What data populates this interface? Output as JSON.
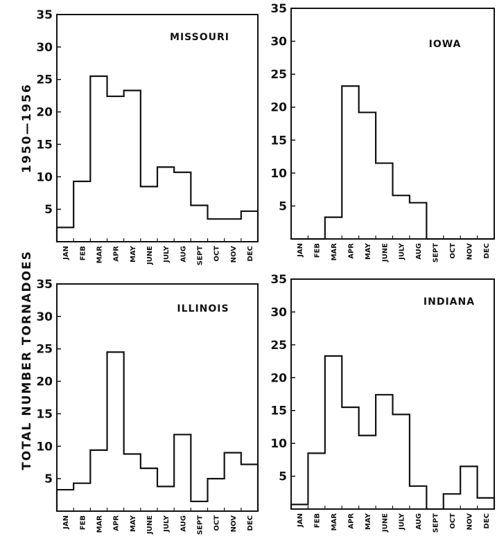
{
  "ylabel_lines": [
    "1950—1956",
    "TOTAL  NUMBER  TORNADOES"
  ],
  "chart_data": [
    {
      "type": "bar",
      "title": "MISSOURI",
      "categories": [
        "JAN",
        "FEB",
        "MAR",
        "APR",
        "MAY",
        "JUNE",
        "JULY",
        "AUG",
        "SEPT",
        "OCT",
        "NOV",
        "DEC"
      ],
      "values": [
        2.2,
        9.3,
        25.5,
        22.4,
        23.3,
        8.5,
        11.5,
        10.7,
        5.6,
        3.5,
        3.5,
        4.7
      ],
      "yticks": [
        5,
        10,
        15,
        20,
        25,
        30,
        35
      ],
      "ylim": [
        0,
        35
      ],
      "xlabel": "",
      "ylabel": "1950—1956 TOTAL NUMBER TORNADOES"
    },
    {
      "type": "bar",
      "title": "IOWA",
      "categories": [
        "JAN",
        "FEB",
        "MAR",
        "APR",
        "MAY",
        "JUNE",
        "JULY",
        "AUG",
        "SEPT",
        "OCT",
        "NOV",
        "DEC"
      ],
      "values": [
        0,
        0,
        3.3,
        23.2,
        19.2,
        11.5,
        6.6,
        5.5,
        0,
        0,
        0,
        0
      ],
      "yticks": [
        5,
        10,
        15,
        20,
        25,
        30,
        35
      ],
      "ylim": [
        0,
        35
      ],
      "xlabel": "",
      "ylabel": ""
    },
    {
      "type": "bar",
      "title": "ILLINOIS",
      "categories": [
        "JAN",
        "FEB",
        "MAR",
        "APR",
        "MAY",
        "JUNE",
        "JULY",
        "AUG",
        "SEPT",
        "OCT",
        "NOV",
        "DEC"
      ],
      "values": [
        3.3,
        4.3,
        9.4,
        24.5,
        8.8,
        6.6,
        3.8,
        11.8,
        1.5,
        5.0,
        9.0,
        7.2
      ],
      "yticks": [
        5,
        10,
        15,
        20,
        25,
        30,
        35
      ],
      "ylim": [
        0,
        35
      ],
      "xlabel": "",
      "ylabel": "1950—1956 TOTAL NUMBER TORNADOES"
    },
    {
      "type": "bar",
      "title": "INDIANA",
      "categories": [
        "JAN",
        "FEB",
        "MAR",
        "APR",
        "MAY",
        "JUNE",
        "JULY",
        "AUG",
        "SEPT",
        "OCT",
        "NOV",
        "DEC"
      ],
      "values": [
        0.7,
        8.5,
        23.3,
        15.5,
        11.2,
        17.4,
        14.4,
        3.5,
        0,
        2.3,
        6.5,
        1.7
      ],
      "yticks": [
        5,
        10,
        15,
        20,
        25,
        30,
        35
      ],
      "ylim": [
        0,
        35
      ],
      "xlabel": "",
      "ylabel": ""
    }
  ]
}
